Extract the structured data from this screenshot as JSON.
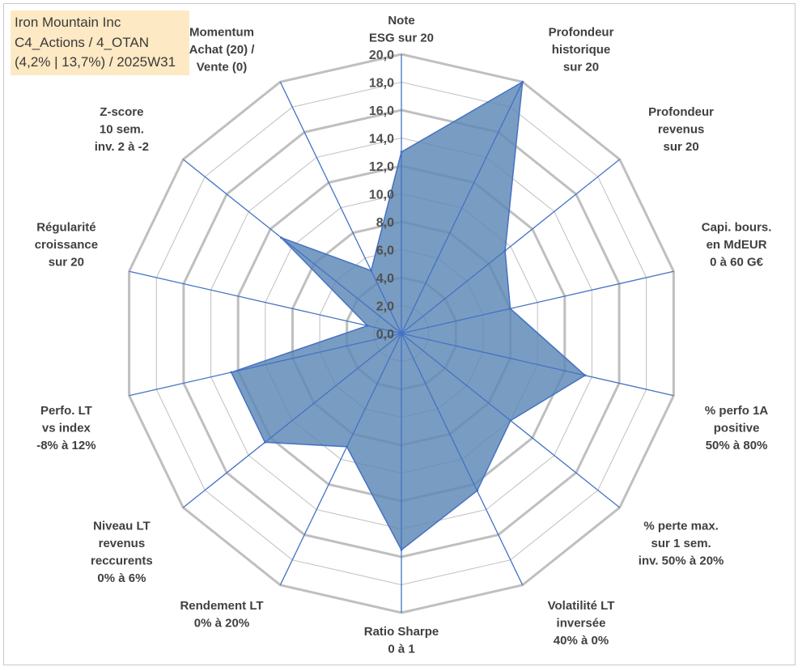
{
  "title_box": {
    "line1": "Iron Mountain Inc",
    "line2": "C4_Actions / 4_OTAN",
    "line3": "(4,2% | 13,7%) / 2025W31"
  },
  "chart_data": {
    "type": "radar",
    "rlim": [
      0,
      20
    ],
    "r_ticks": [
      "0,0",
      "2,0",
      "4,0",
      "6,0",
      "8,0",
      "10,0",
      "12,0",
      "14,0",
      "16,0",
      "18,0",
      "20,0"
    ],
    "grid": true,
    "legend": "none",
    "fill_color": "#5b86b5",
    "line_color": "#4472c4",
    "grid_color": "#bfbfbf",
    "axes": [
      {
        "label": [
          "Note",
          "ESG sur 20"
        ],
        "value": 13.0
      },
      {
        "label": [
          "Profondeur",
          "historique",
          "sur 20"
        ],
        "value": 20.0
      },
      {
        "label": [
          "Profondeur",
          "revenus",
          "sur 20"
        ],
        "value": 9.5
      },
      {
        "label": [
          "Capi. bours.",
          "en MdEUR",
          "0 à 60 G€"
        ],
        "value": 8.0
      },
      {
        "label": [
          "% perfo 1A",
          "positive",
          "50% à 80%"
        ],
        "value": 13.5
      },
      {
        "label": [
          "% perte max.",
          "sur 1 sem.",
          "inv. 50% à 20%"
        ],
        "value": 10.0
      },
      {
        "label": [
          "Volatilité LT",
          "inversée",
          "40% à 0%"
        ],
        "value": 12.5
      },
      {
        "label": [
          "Ratio Sharpe",
          "0 à 1"
        ],
        "value": 15.5
      },
      {
        "label": [
          "Rendement LT",
          "0% à 20%"
        ],
        "value": 9.0
      },
      {
        "label": [
          "Niveau LT",
          "revenus",
          "reccurents",
          "0% à 6%"
        ],
        "value": 12.5
      },
      {
        "label": [
          "Perfo. LT",
          "vs index",
          "-8% à 12%"
        ],
        "value": 12.5
      },
      {
        "label": [
          "Régularité",
          "croissance",
          "sur 20"
        ],
        "value": 2.5
      },
      {
        "label": [
          "Z-score",
          "10 sem.",
          "inv. 2 à -2"
        ],
        "value": 11.0
      },
      {
        "label": [
          "Momentum",
          "Achat (20) /",
          "Vente (0)"
        ],
        "value": 5.0
      }
    ]
  }
}
